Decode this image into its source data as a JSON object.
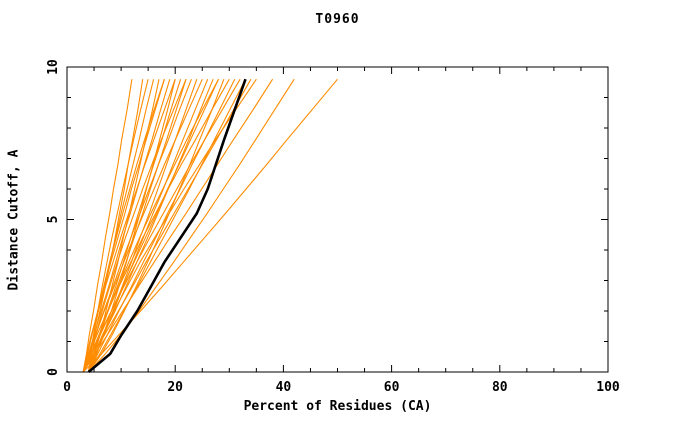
{
  "page": {
    "background": "#ffffff"
  },
  "chart_data": {
    "type": "line",
    "title": "T0960",
    "xlabel": "Percent of Residues (CA)",
    "ylabel": "Distance Cutoff, A",
    "xlim": [
      0,
      100
    ],
    "ylim": [
      0,
      10
    ],
    "xticks": [
      0,
      20,
      40,
      60,
      80,
      100
    ],
    "yticks": [
      0,
      5,
      10
    ],
    "x_minor_step": 5,
    "y_minor_step": 1,
    "grid": "off",
    "legend_position": "none",
    "colors": {
      "models": "#ff8c00",
      "highlight": "#000000",
      "axis": "#000000"
    },
    "y_grid": [
      0,
      0.6,
      1.2,
      2,
      2.8,
      3.6,
      4.4,
      5.2,
      6,
      6.8,
      7.6,
      8.6,
      9.6
    ],
    "model_series_x": [
      [
        3,
        3.6,
        4.1,
        4.9,
        5.6,
        6.4,
        7.1,
        7.9,
        8.6,
        9.4,
        10.1,
        11.1,
        12
      ],
      [
        3,
        4.2,
        5.1,
        6.1,
        7.1,
        8,
        8.9,
        9.7,
        10.6,
        11.3,
        12.1,
        13.1,
        14
      ],
      [
        4,
        4.4,
        4.9,
        5.7,
        6.5,
        7.4,
        8.3,
        9.3,
        10.3,
        11.3,
        12.3,
        13.6,
        15
      ],
      [
        3,
        3.8,
        4.6,
        5.7,
        6.8,
        7.9,
        9,
        10,
        11.1,
        12.2,
        13.3,
        14.6,
        16
      ],
      [
        4,
        5.1,
        6,
        7.2,
        8.3,
        9.4,
        10.4,
        11.5,
        12.5,
        13.5,
        14.5,
        15.8,
        17
      ],
      [
        3,
        3.7,
        4.5,
        5.7,
        6.9,
        8.1,
        9.4,
        10.7,
        11.9,
        13.3,
        14.6,
        16.3,
        18
      ],
      [
        4,
        4.4,
        4.9,
        5.8,
        6.8,
        7.9,
        9.1,
        10.3,
        11.6,
        12.9,
        14.3,
        16.1,
        18
      ],
      [
        3,
        4,
        5,
        6.3,
        7.7,
        9,
        10.3,
        11.7,
        13,
        14.3,
        15.7,
        17.3,
        19
      ],
      [
        4,
        5.5,
        6.7,
        8.2,
        9.6,
        11,
        12.2,
        13.5,
        14.7,
        15.9,
        17.1,
        18.6,
        20
      ],
      [
        3,
        3.7,
        4.5,
        5.8,
        7.1,
        8.5,
        9.9,
        11.4,
        12.9,
        14.4,
        16,
        18,
        20
      ],
      [
        4,
        5.1,
        6.1,
        7.5,
        9,
        10.4,
        11.8,
        13.2,
        14.6,
        16,
        17.5,
        19.2,
        21
      ],
      [
        3,
        4.6,
        5.9,
        7.6,
        9.3,
        10.9,
        12.4,
        14,
        15.4,
        16.9,
        18.4,
        20.2,
        22
      ],
      [
        4,
        4.6,
        5.3,
        6.5,
        7.9,
        9.3,
        10.8,
        12.4,
        14,
        15.7,
        17.4,
        19.7,
        22
      ],
      [
        3,
        4.1,
        5.3,
        6.8,
        8.5,
        10.1,
        11.8,
        13.5,
        15.2,
        16.9,
        18.7,
        20.8,
        23
      ],
      [
        4,
        5.4,
        6.8,
        8.5,
        10.2,
        11.9,
        13.5,
        15.2,
        16.8,
        18.4,
        20,
        22,
        24
      ],
      [
        3,
        4,
        5.2,
        6.9,
        8.7,
        10.5,
        12.3,
        14.2,
        16.1,
        18,
        20,
        22.5,
        25
      ],
      [
        4,
        5.4,
        6.8,
        8.6,
        10.4,
        12.3,
        14.1,
        15.9,
        17.8,
        19.6,
        21.4,
        23.7,
        26
      ],
      [
        3,
        5,
        6.7,
        8.9,
        10.9,
        12.9,
        14.9,
        16.8,
        18.7,
        20.6,
        22.5,
        24.7,
        27
      ],
      [
        4,
        4.9,
        6,
        7.6,
        9.5,
        11.4,
        13.4,
        15.5,
        17.7,
        19.9,
        22.1,
        25,
        28
      ],
      [
        3,
        4.6,
        6.1,
        8.2,
        10.3,
        12.4,
        14.5,
        16.6,
        18.6,
        20.7,
        22.8,
        25.4,
        28
      ],
      [
        4,
        6.4,
        8.3,
        10.6,
        12.8,
        14.9,
        16.9,
        18.9,
        20.8,
        22.7,
        24.5,
        26.8,
        29
      ],
      [
        3,
        4.1,
        5.5,
        7.5,
        9.6,
        11.8,
        14,
        16.4,
        18.7,
        21.1,
        23.7,
        26.8,
        30
      ],
      [
        4,
        5.7,
        7.4,
        9.6,
        11.9,
        14.1,
        16.4,
        18.6,
        20.9,
        23.1,
        25.4,
        28.2,
        31
      ],
      [
        3,
        4.4,
        5.9,
        8.2,
        10.5,
        12.9,
        15.3,
        17.8,
        20.3,
        22.8,
        25.4,
        28.7,
        32
      ],
      [
        4,
        6.1,
        8,
        10.5,
        13,
        15.4,
        17.8,
        20.2,
        22.6,
        24.9,
        27.2,
        30.1,
        33
      ],
      [
        3,
        4.9,
        6.9,
        9.5,
        12.1,
        14.6,
        17.2,
        19.8,
        22.4,
        25,
        27.6,
        30.8,
        34
      ],
      [
        4,
        5.1,
        6.5,
        8.7,
        11.1,
        13.5,
        16.2,
        18.9,
        21.6,
        24.5,
        27.4,
        31.2,
        35
      ],
      [
        3,
        5.2,
        7.4,
        10.3,
        13.2,
        16.1,
        19,
        22,
        24.9,
        27.8,
        30.7,
        34.4,
        38
      ],
      [
        4,
        7.1,
        9.9,
        13.3,
        16.5,
        19.7,
        22.8,
        25.9,
        28.9,
        31.9,
        34.8,
        38.4,
        42
      ],
      [
        3,
        6.4,
        9.5,
        13.6,
        17.6,
        21.5,
        25.4,
        29.3,
        33.1,
        36.9,
        40.6,
        45.3,
        50
      ]
    ],
    "highlight_series": {
      "name": "highlighted-model",
      "x": [
        4,
        8,
        10,
        13,
        15.5,
        18,
        21,
        24,
        26,
        27.5,
        29,
        31,
        33
      ]
    }
  }
}
